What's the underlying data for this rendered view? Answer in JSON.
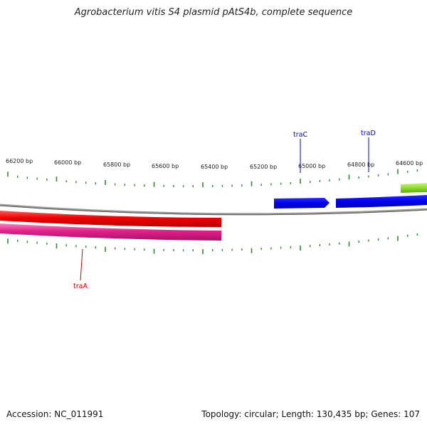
{
  "title": "Agrobacterium vitis S4 plasmid pAtS4b, complete sequence",
  "footer": {
    "accession": "Accession: NC_011991",
    "summary": "Topology: circular; Length: 130,435 bp; Genes: 107"
  },
  "ruler": {
    "labels": [
      "66200 bp",
      "66000 bp",
      "65800 bp",
      "65600 bp",
      "65400 bp",
      "65200 bp",
      "65000 bp",
      "64800 bp",
      "64600 bp"
    ],
    "tick_color": "#2e8b2e"
  },
  "genes": [
    {
      "name": "traC",
      "strand": "+",
      "color": "#0000cc"
    },
    {
      "name": "traD",
      "strand": "+",
      "color": "#0000cc"
    },
    {
      "name": "traA",
      "strand": "-",
      "color": "#cc0000"
    }
  ],
  "colors": {
    "backbone": "#888888",
    "forward_gene": "#0000ee",
    "reverse_gene_outer": "#ee0000",
    "reverse_gene_inner": "#e0208a",
    "partial_gene": "#8fdc2a",
    "label_forward": "#0000cc",
    "label_reverse": "#cc0000"
  }
}
